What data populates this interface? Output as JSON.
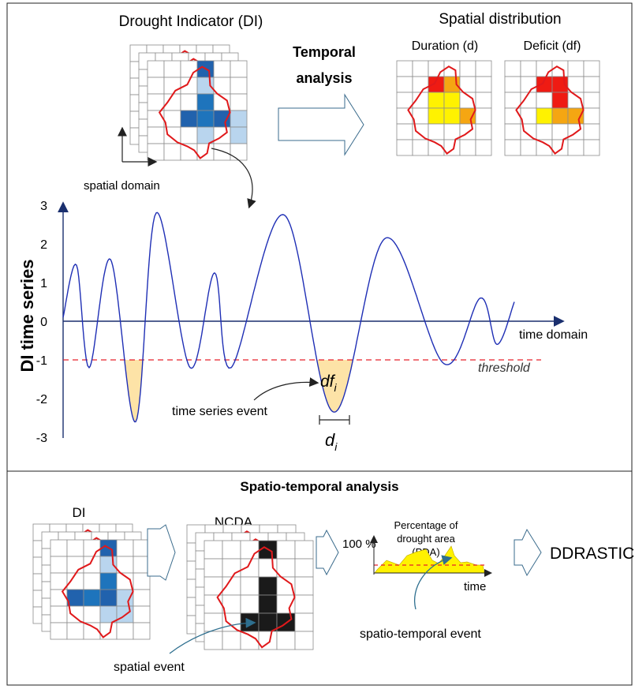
{
  "top": {
    "title": "Drought Indicator (DI)",
    "spatial_domain_label": "spatial domain",
    "temporal_analysis_line1": "Temporal",
    "temporal_analysis_line2": "analysis",
    "spatial_distribution_title": "Spatial distribution",
    "duration_label": "Duration (d)",
    "deficit_label": "Deficit (df)"
  },
  "timeseries": {
    "y_axis_label": "DI time series",
    "y_ticks": [
      "3",
      "2",
      "1",
      "0",
      "-1",
      "-2",
      "-3"
    ],
    "x_axis_label": "time domain",
    "threshold_label": "threshold",
    "event_label": "time series event",
    "deficit_symbol": "df",
    "duration_symbol": "d",
    "subscript": "i",
    "threshold_value": -1
  },
  "bottom": {
    "title": "Spatio-temporal analysis",
    "di_label": "DI",
    "ncda_label": "NCDA",
    "spatial_event_label": "spatial event",
    "pda_line1": "Percentage of",
    "pda_line2": "drought area",
    "pda_line3": "(PDA)",
    "pda_hundred": "100 %",
    "pda_time": "time",
    "st_event_label": "spatio-temporal event",
    "result_label": "DDRASTIC"
  },
  "colors": {
    "outline": "#e0191b",
    "grid": "#8c8c8c",
    "curve": "#1f2fb5",
    "threshold": "#e8202a",
    "deficit_fill": "#fde3a7",
    "dark_blue": "#2162ad",
    "mid_blue": "#1e74bc",
    "light_blue": "#b9d5ee",
    "red": "#ef1b13",
    "orange": "#f5a612",
    "yellow": "#fff200",
    "black": "#1a1a1a",
    "arrow_outline": "#3a6b8c"
  }
}
